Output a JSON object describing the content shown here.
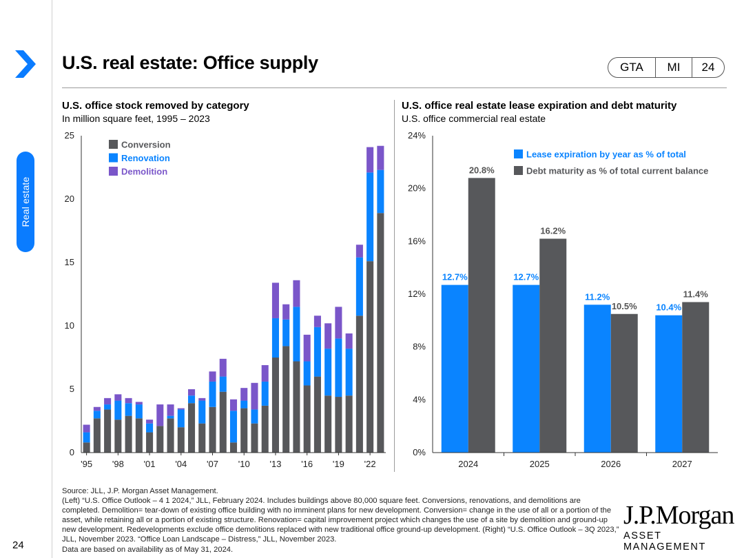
{
  "page": {
    "title": "U.S. real estate: Office supply",
    "side_tab": "Real estate",
    "page_number": "24",
    "codes": [
      "GTA",
      "MI",
      "24"
    ]
  },
  "left_chart": {
    "title": "U.S. office stock removed by category",
    "subtitle": "In million square feet, 1995 – 2023"
  },
  "right_chart": {
    "title": "U.S. office real estate lease expiration and debt maturity",
    "subtitle": "U.S. office commercial real estate"
  },
  "chart_data": [
    {
      "type": "bar",
      "stacked": true,
      "title": "U.S. office stock removed by category",
      "ylim": [
        0,
        25
      ],
      "yticks": [
        0,
        5,
        10,
        15,
        20,
        25
      ],
      "x_tick_labels": [
        "'95",
        "'98",
        "'01",
        "'04",
        "'07",
        "'10",
        "'13",
        "'16",
        "'19",
        "'22"
      ],
      "categories": [
        "1995",
        "1996",
        "1997",
        "1998",
        "1999",
        "2000",
        "2001",
        "2002",
        "2003",
        "2004",
        "2005",
        "2006",
        "2007",
        "2008",
        "2009",
        "2010",
        "2011",
        "2012",
        "2013",
        "2014",
        "2015",
        "2016",
        "2017",
        "2018",
        "2019",
        "2020",
        "2021",
        "2022",
        "2023"
      ],
      "series": [
        {
          "name": "Conversion",
          "color": "#57585b",
          "values": [
            0.8,
            2.7,
            3.4,
            2.6,
            2.9,
            2.7,
            1.6,
            2.1,
            2.7,
            2.0,
            3.9,
            2.3,
            3.6,
            4.8,
            0.8,
            3.5,
            2.3,
            3.7,
            7.5,
            8.4,
            7.2,
            5.3,
            6.0,
            4.5,
            4.4,
            4.5,
            10.8,
            15.1,
            18.9
          ]
        },
        {
          "name": "Renovation",
          "color": "#0a84ff",
          "values": [
            0.8,
            0.6,
            0.4,
            1.5,
            1.0,
            1.1,
            0.7,
            0.0,
            0.2,
            1.4,
            0.6,
            1.8,
            2.0,
            1.2,
            2.5,
            0.6,
            1.1,
            1.9,
            3.1,
            2.1,
            4.3,
            1.9,
            3.9,
            3.7,
            4.6,
            3.7,
            4.6,
            7.0,
            3.4
          ]
        },
        {
          "name": "Demolition",
          "color": "#7a56c9",
          "values": [
            0.6,
            0.3,
            0.5,
            0.5,
            0.4,
            0.2,
            0.3,
            1.7,
            0.9,
            0.1,
            0.5,
            0.2,
            0.8,
            1.4,
            0.9,
            1.0,
            2.1,
            1.3,
            2.8,
            1.2,
            2.1,
            2.1,
            0.9,
            2.0,
            2.5,
            1.2,
            1.0,
            2.0,
            1.9
          ]
        }
      ]
    },
    {
      "type": "bar",
      "title": "U.S. office real estate lease expiration and debt maturity",
      "ylim": [
        0,
        24
      ],
      "yticks": [
        "0%",
        "4%",
        "8%",
        "12%",
        "16%",
        "20%",
        "24%"
      ],
      "categories": [
        "2024",
        "2025",
        "2026",
        "2027"
      ],
      "series": [
        {
          "name": "Lease expiration by year as % of total",
          "color": "#0a84ff",
          "values": [
            12.7,
            12.7,
            11.2,
            10.4
          ],
          "labels": [
            "12.7%",
            "12.7%",
            "11.2%",
            "10.4%"
          ]
        },
        {
          "name": "Debt maturity as % of total current balance",
          "color": "#57585b",
          "values": [
            20.8,
            16.2,
            10.5,
            11.4
          ],
          "labels": [
            "20.8%",
            "16.2%",
            "10.5%",
            "11.4%"
          ]
        }
      ]
    }
  ],
  "footer": {
    "source_lines": [
      "Source: JLL, J.P. Morgan Asset Management.",
      "(Left) “U.S. Office Outlook – 4 1 2024,” JLL, February 2024. Includes buildings above 80,000 square feet. Conversions, renovations, and demolitions are completed. Demolition= tear-down of existing office building with no imminent plans for new development. Conversion= change in the use of all or a portion of the asset, while retaining all or a portion of existing structure. Renovation= capital improvement project which changes the use of a site by demolition and ground-up new development. Redevelopments exclude office demolitions replaced with new traditional office ground-up development. (Right) “U.S. Office Outlook – 3Q 2023,” JLL, November 2023. “Office Loan Landscape – Distress,” JLL, November 2023.",
      "Data are based on availability as of May 31, 2024."
    ],
    "logo_line1": "J.P.Morgan",
    "logo_line2": "ASSET MANAGEMENT"
  }
}
